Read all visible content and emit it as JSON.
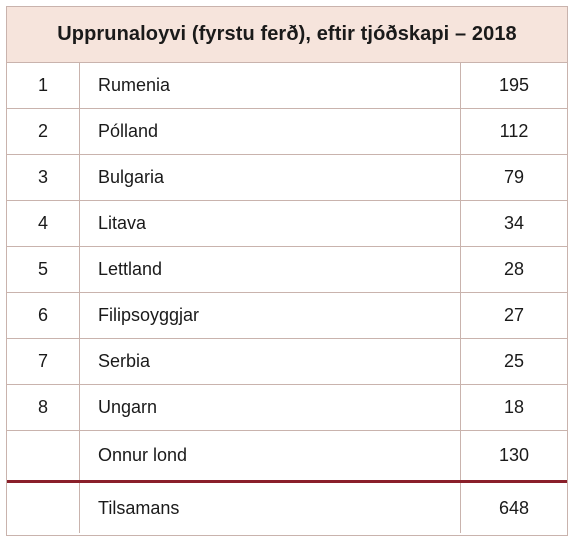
{
  "table": {
    "title": "Upprunaloyvi (fyrstu ferð), eftir tjóðskapi – 2018",
    "rows": [
      {
        "rank": "1",
        "country": "Rumenia",
        "value": "195"
      },
      {
        "rank": "2",
        "country": "Pólland",
        "value": "112"
      },
      {
        "rank": "3",
        "country": "Bulgaria",
        "value": "79"
      },
      {
        "rank": "4",
        "country": "Litava",
        "value": "34"
      },
      {
        "rank": "5",
        "country": "Lettland",
        "value": "28"
      },
      {
        "rank": "6",
        "country": "Filipsoyggjar",
        "value": "27"
      },
      {
        "rank": "7",
        "country": "Serbia",
        "value": "25"
      },
      {
        "rank": "8",
        "country": "Ungarn",
        "value": "18"
      }
    ],
    "other": {
      "rank": "",
      "country": "Onnur lond",
      "value": "130"
    },
    "total": {
      "rank": "",
      "country": "Tilsamans",
      "value": "648"
    }
  }
}
